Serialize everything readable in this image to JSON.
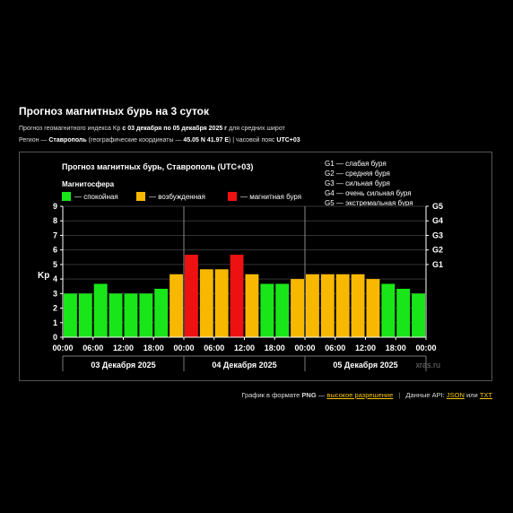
{
  "page": {
    "title": "Прогноз магнитных бурь на 3 суток",
    "meta1": {
      "prefix": "Прогноз геомагнитного индекса Kp",
      "range": "с 03 декабря по 05 декабря 2025 г",
      "suffix": "для средних широт"
    },
    "meta2": {
      "region_label": "Регион —",
      "region": "Ставрополь",
      "coords_label": "(географические координаты —",
      "coords": "45.05 N 41.97 E",
      "tz_label": ") | часовой пояс",
      "tz": "UTC+03"
    }
  },
  "footer": {
    "png_prefix": "График в формате",
    "png_bold": "PNG",
    "png_dash": "—",
    "hires_link": "высокое разрешение",
    "api_label": "Данные API:",
    "json_link": "JSON",
    "or": "или",
    "txt_link": "TXT"
  },
  "colors": {
    "quiet": "#19e619",
    "unsettled": "#f8b800",
    "storm": "#ee1111",
    "background": "#000000",
    "grid": "#888888"
  },
  "chart_data": {
    "type": "bar",
    "title": "Прогноз магнитных бурь, Ставрополь (UTC+03)",
    "ylabel": "Kp",
    "ylim": [
      0,
      9
    ],
    "yticks": [
      "0",
      "1",
      "2",
      "3",
      "4",
      "5",
      "6",
      "7",
      "8",
      "9"
    ],
    "right_ticks": [
      {
        "label": "G1",
        "value": 5
      },
      {
        "label": "G2",
        "value": 6
      },
      {
        "label": "G3",
        "value": 7
      },
      {
        "label": "G4",
        "value": 8
      },
      {
        "label": "G5",
        "value": 9
      }
    ],
    "legend_title": "Магнитосфера",
    "legend": [
      {
        "label": "— спокойная",
        "color": "#19e619"
      },
      {
        "label": "— возбужденная",
        "color": "#f8b800"
      },
      {
        "label": "— магнитная буря",
        "color": "#ee1111"
      }
    ],
    "g_legend": [
      "G1 — слабая буря",
      "G2 — средняя буря",
      "G3 — сильная буря",
      "G4 — очень сильная буря",
      "G5 — экстремальная буря"
    ],
    "xticks": [
      "00:00",
      "06:00",
      "12:00",
      "18:00",
      "00:00",
      "06:00",
      "12:00",
      "18:00",
      "00:00",
      "06:00",
      "12:00",
      "18:00",
      "00:00"
    ],
    "days": [
      "03 Декабря 2025",
      "04 Декабря 2025",
      "05 Декабря 2025"
    ],
    "watermark": "xras.ru",
    "values": [
      3.0,
      3.0,
      3.67,
      3.0,
      3.0,
      3.0,
      3.33,
      4.33,
      5.67,
      4.67,
      4.67,
      5.67,
      4.33,
      3.67,
      3.67,
      4.0,
      4.33,
      4.33,
      4.33,
      4.33,
      4.0,
      3.67,
      3.33,
      3.0
    ],
    "levels": [
      "quiet",
      "quiet",
      "quiet",
      "quiet",
      "quiet",
      "quiet",
      "quiet",
      "unsettled",
      "storm",
      "unsettled",
      "unsettled",
      "storm",
      "unsettled",
      "quiet",
      "quiet",
      "unsettled",
      "unsettled",
      "unsettled",
      "unsettled",
      "unsettled",
      "unsettled",
      "quiet",
      "quiet",
      "quiet"
    ]
  }
}
